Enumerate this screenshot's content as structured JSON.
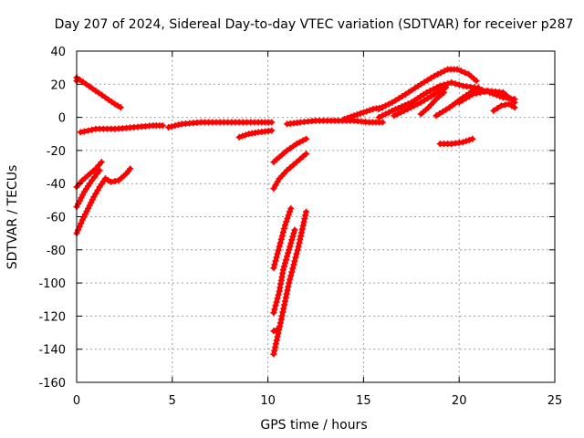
{
  "chart_data": {
    "type": "scatter",
    "title": "Day 207 of 2024, Sidereal Day-to-day VTEC variation (SDTVAR) for receiver p287",
    "xlabel": "GPS time / hours",
    "ylabel": "SDTVAR / TECUs",
    "xlim": [
      0,
      25
    ],
    "ylim": [
      -160,
      40
    ],
    "xticks": [
      0,
      5,
      10,
      15,
      20,
      25
    ],
    "yticks": [
      40,
      20,
      0,
      -20,
      -40,
      -60,
      -80,
      -100,
      -120,
      -140,
      -160
    ],
    "xtick_labels": [
      "0",
      "5",
      "10",
      "15",
      "20",
      "25"
    ],
    "ytick_labels": [
      "40",
      "20",
      "0",
      "-20",
      "-40",
      "-60",
      "-80",
      "-100",
      "-120",
      "-140",
      "-160"
    ],
    "grid": true,
    "marker": "+",
    "color": "#ff0000",
    "tracks": [
      {
        "name": "a",
        "x": [
          0.0,
          0.5,
          1.0,
          1.5,
          2.0,
          2.3
        ],
        "y": [
          24,
          20,
          16,
          12,
          8,
          6
        ]
      },
      {
        "name": "b",
        "x": [
          0.2,
          1.0,
          2.0,
          3.0,
          4.0,
          4.5
        ],
        "y": [
          -9,
          -7,
          -7,
          -6,
          -5,
          -5
        ]
      },
      {
        "name": "c",
        "x": [
          4.8,
          5.5,
          6.5,
          7.5,
          8.5,
          9.5,
          10.2
        ],
        "y": [
          -6,
          -4,
          -3,
          -3,
          -3,
          -3,
          -3
        ]
      },
      {
        "name": "d",
        "x": [
          8.5,
          9.0,
          9.5,
          10.2
        ],
        "y": [
          -12,
          -10,
          -9,
          -8
        ]
      },
      {
        "name": "e",
        "x": [
          0.0,
          0.3,
          0.6,
          1.0,
          1.3
        ],
        "y": [
          -42,
          -38,
          -35,
          -31,
          -27
        ]
      },
      {
        "name": "f",
        "x": [
          0.0,
          0.4,
          0.8,
          1.2
        ],
        "y": [
          -54,
          -45,
          -38,
          -32
        ]
      },
      {
        "name": "g",
        "x": [
          0.0,
          0.3,
          0.6,
          0.9,
          1.2,
          1.5
        ],
        "y": [
          -70,
          -62,
          -55,
          -48,
          -42,
          -37
        ]
      },
      {
        "name": "h",
        "x": [
          1.5,
          1.8,
          2.2,
          2.6,
          2.8
        ],
        "y": [
          -37,
          -39,
          -38,
          -34,
          -31
        ]
      },
      {
        "name": "i",
        "x": [
          10.3,
          10.6,
          11.0,
          11.5,
          12.0
        ],
        "y": [
          -27,
          -24,
          -20,
          -16,
          -13
        ]
      },
      {
        "name": "j",
        "x": [
          10.3,
          10.6,
          11.0,
          11.5,
          12.0
        ],
        "y": [
          -43,
          -37,
          -32,
          -27,
          -22
        ]
      },
      {
        "name": "k",
        "x": [
          10.3,
          10.6,
          10.9,
          11.2
        ],
        "y": [
          -91,
          -78,
          -65,
          -55
        ]
      },
      {
        "name": "l",
        "x": [
          10.3,
          10.6,
          10.8,
          11.1,
          11.4
        ],
        "y": [
          -118,
          -105,
          -92,
          -80,
          -68
        ]
      },
      {
        "name": "m",
        "x": [
          10.3,
          10.7,
          11.1,
          11.6,
          12.0
        ],
        "y": [
          -143,
          -122,
          -100,
          -78,
          -57
        ]
      },
      {
        "name": "n",
        "x": [
          10.3,
          10.5
        ],
        "y": [
          -129,
          -128
        ]
      },
      {
        "name": "o",
        "x": [
          11.0,
          11.7,
          12.5,
          13.5,
          14.5,
          15.3,
          16.0
        ],
        "y": [
          -4,
          -3,
          -2,
          -2,
          -2,
          -3,
          -3
        ]
      },
      {
        "name": "p",
        "x": [
          14.0,
          14.5,
          15.0,
          15.5,
          16.0
        ],
        "y": [
          -1,
          1,
          3,
          5,
          6
        ]
      },
      {
        "name": "q",
        "x": [
          15.8,
          16.5,
          17.2,
          18.0,
          18.7,
          19.4,
          19.9,
          20.5,
          20.9
        ],
        "y": [
          5,
          9,
          14,
          20,
          25,
          29,
          29,
          26,
          22
        ]
      },
      {
        "name": "r",
        "x": [
          15.8,
          16.5,
          17.5,
          18.3,
          19.0,
          19.6,
          20.2,
          20.8
        ],
        "y": [
          0,
          4,
          9,
          15,
          19,
          21,
          19,
          18
        ]
      },
      {
        "name": "s",
        "x": [
          16.6,
          17.3,
          18.0,
          18.7,
          19.3
        ],
        "y": [
          1,
          5,
          9,
          14,
          18
        ]
      },
      {
        "name": "t",
        "x": [
          18.0,
          18.4,
          18.8,
          19.2
        ],
        "y": [
          2,
          6,
          11,
          15
        ]
      },
      {
        "name": "u",
        "x": [
          18.8,
          19.5,
          20.2,
          21.0
        ],
        "y": [
          1,
          6,
          12,
          18
        ]
      },
      {
        "name": "v",
        "x": [
          20.0,
          20.7,
          21.5,
          22.3,
          22.9
        ],
        "y": [
          9,
          14,
          16,
          15,
          9
        ]
      },
      {
        "name": "w",
        "x": [
          20.8,
          21.6,
          22.3,
          22.9
        ],
        "y": [
          18,
          15,
          12,
          11
        ]
      },
      {
        "name": "x",
        "x": [
          21.8,
          22.2,
          22.6,
          22.9
        ],
        "y": [
          4,
          7,
          8,
          6
        ]
      },
      {
        "name": "y",
        "x": [
          19.0,
          19.6,
          20.2,
          20.7
        ],
        "y": [
          -16,
          -16,
          -15,
          -13
        ]
      },
      {
        "name": "z",
        "x": [
          0.0,
          0.05
        ],
        "y": [
          22,
          23
        ]
      }
    ]
  }
}
